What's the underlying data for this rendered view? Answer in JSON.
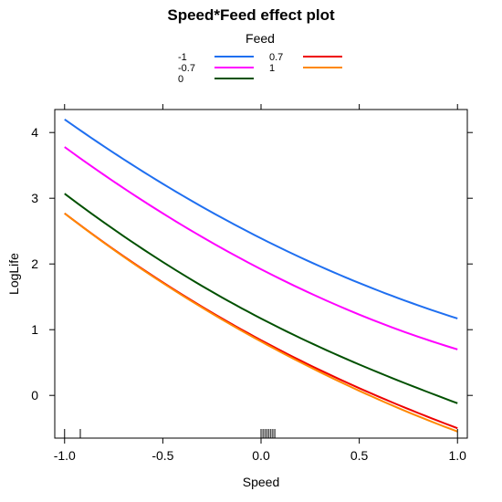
{
  "chart_data": {
    "type": "line",
    "title": "Speed*Feed effect plot",
    "xlabel": "Speed",
    "ylabel": "LogLife",
    "xlim": [
      -1.05,
      1.05
    ],
    "ylim": [
      -0.65,
      4.35
    ],
    "x_ticks": [
      -1.0,
      -0.5,
      0.0,
      0.5,
      1.0
    ],
    "x_tick_labels": [
      "-1.0",
      "-0.5",
      "0.0",
      "0.5",
      "1.0"
    ],
    "y_ticks": [
      0,
      1,
      2,
      3,
      4
    ],
    "y_tick_labels": [
      "0",
      "1",
      "2",
      "3",
      "4"
    ],
    "legend": {
      "title": "Feed",
      "placement": "top"
    },
    "x": [
      -1.0,
      -0.5,
      0.0,
      0.5,
      1.0
    ],
    "series": [
      {
        "name": "-1",
        "color": "#1f6ff0",
        "values": [
          4.2,
          3.22,
          2.39,
          1.71,
          1.17
        ]
      },
      {
        "name": "-0.7",
        "color": "#ff00ff",
        "values": [
          3.78,
          2.77,
          1.92,
          1.23,
          0.7
        ]
      },
      {
        "name": "0",
        "color": "#005000",
        "values": [
          3.07,
          2.03,
          1.17,
          0.47,
          -0.12
        ]
      },
      {
        "name": "0.7",
        "color": "#ee0000",
        "values": [
          2.77,
          1.72,
          0.84,
          0.11,
          -0.5
        ]
      },
      {
        "name": "1",
        "color": "#ff8800",
        "values": [
          2.77,
          1.71,
          0.82,
          0.07,
          -0.55
        ]
      }
    ],
    "rug_x": [
      -1.0,
      -0.92,
      0.0,
      0.01,
      0.02,
      0.03,
      0.04,
      0.05,
      0.06,
      0.07,
      1.0
    ],
    "grid": false
  }
}
